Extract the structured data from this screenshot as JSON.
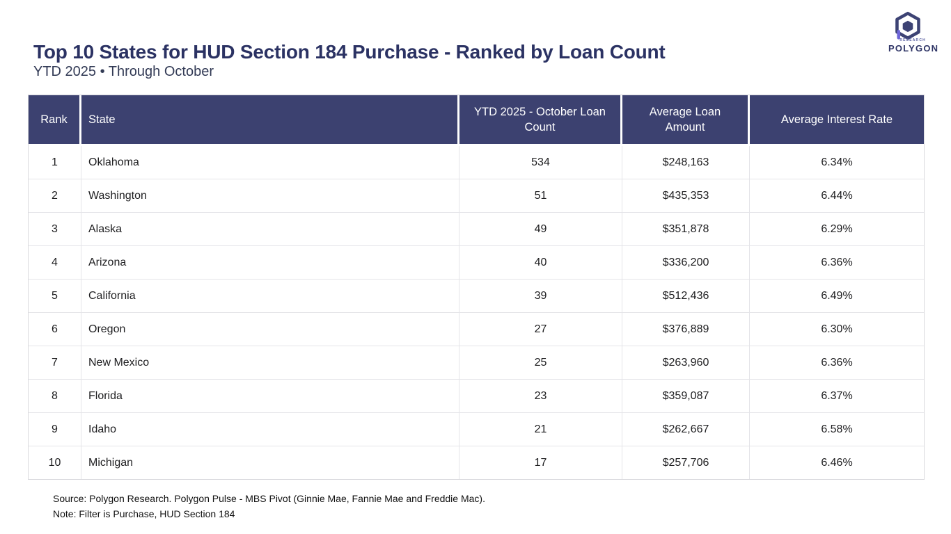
{
  "colors": {
    "header_bg": "#3c4170",
    "title_text": "#2b3263",
    "logo_indigo": "#3d4374",
    "logo_accent": "#6d65d8",
    "row_border": "#e4e4e8"
  },
  "header": {
    "title": "Top 10 States for HUD Section 184 Purchase - Ranked by Loan Count",
    "subtitle": "YTD 2025 • Through October",
    "logo": {
      "brand_top": "RESEARCH",
      "brand": "POLYGON",
      "icon": "polygon-hexagon-cube-icon"
    }
  },
  "table": {
    "columns": [
      "Rank",
      "State",
      "YTD 2025 - October Loan Count",
      "Average Loan Amount",
      "Average Interest Rate"
    ],
    "rows": [
      [
        "1",
        "Oklahoma",
        "534",
        "$248,163",
        "6.34%"
      ],
      [
        "2",
        "Washington",
        "51",
        "$435,353",
        "6.44%"
      ],
      [
        "3",
        "Alaska",
        "49",
        "$351,878",
        "6.29%"
      ],
      [
        "4",
        "Arizona",
        "40",
        "$336,200",
        "6.36%"
      ],
      [
        "5",
        "California",
        "39",
        "$512,436",
        "6.49%"
      ],
      [
        "6",
        "Oregon",
        "27",
        "$376,889",
        "6.30%"
      ],
      [
        "7",
        "New Mexico",
        "25",
        "$263,960",
        "6.36%"
      ],
      [
        "8",
        "Florida",
        "23",
        "$359,087",
        "6.37%"
      ],
      [
        "9",
        "Idaho",
        "21",
        "$262,667",
        "6.58%"
      ],
      [
        "10",
        "Michigan",
        "17",
        "$257,706",
        "6.46%"
      ]
    ]
  },
  "footer": {
    "source": "Source: Polygon Research. Polygon Pulse - MBS Pivot (Ginnie Mae, Fannie Mae and Freddie Mac).",
    "note": "Note: Filter is Purchase, HUD Section 184"
  },
  "chart_data": {
    "type": "table",
    "title": "Top 10 States for HUD Section 184 Purchase - Ranked by Loan Count",
    "subtitle": "YTD 2025 • Through October",
    "columns": [
      "Rank",
      "State",
      "YTD 2025 - October Loan Count",
      "Average Loan Amount",
      "Average Interest Rate"
    ],
    "states": [
      "Oklahoma",
      "Washington",
      "Alaska",
      "Arizona",
      "California",
      "Oregon",
      "New Mexico",
      "Florida",
      "Idaho",
      "Michigan"
    ],
    "loan_counts": [
      534,
      51,
      49,
      40,
      39,
      27,
      25,
      23,
      21,
      17
    ],
    "average_loan_amounts": [
      248163,
      435353,
      351878,
      336200,
      512436,
      376889,
      263960,
      359087,
      262667,
      257706
    ],
    "average_interest_rates": [
      6.34,
      6.44,
      6.29,
      6.36,
      6.49,
      6.3,
      6.36,
      6.37,
      6.58,
      6.46
    ],
    "source": "Source: Polygon Research. Polygon Pulse - MBS Pivot (Ginnie Mae, Fannie Mae and Freddie Mac).",
    "note": "Note: Filter is Purchase, HUD Section 184"
  }
}
